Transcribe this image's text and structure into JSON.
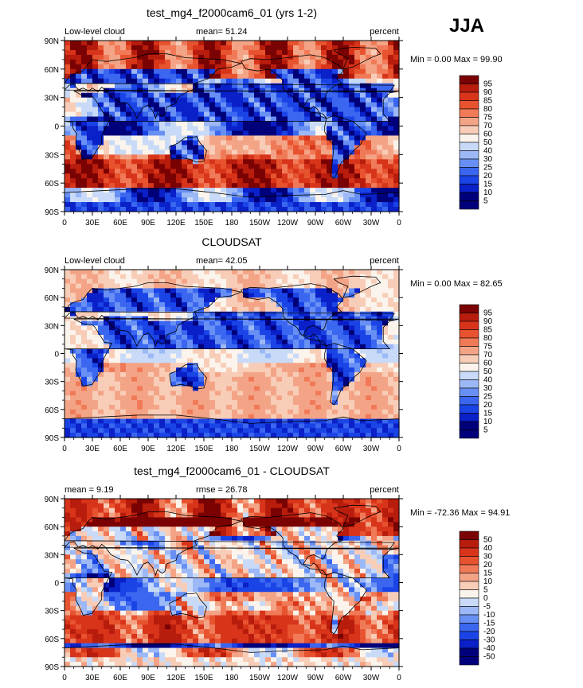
{
  "season": "JJA",
  "lat_ticks": [
    "90N",
    "60N",
    "30N",
    "0",
    "30S",
    "60S",
    "90S"
  ],
  "lon_ticks": [
    "0",
    "30E",
    "60E",
    "90E",
    "120E",
    "150E",
    "180",
    "150W",
    "120W",
    "90W",
    "60W",
    "30W",
    "0"
  ],
  "chart_data": [
    {
      "type": "heatmap",
      "title": "test_mg4_f2000cam6_01 (yrs 1-2)",
      "left_label": "Low-level cloud",
      "center_label": "mean=  51.24",
      "right_label": "percent",
      "stats": "Min =    0.00 Max =   99.90",
      "min": 0.0,
      "max": 99.9,
      "mean": 51.24,
      "colorbar_levels": [
        "95",
        "90",
        "85",
        "80",
        "75",
        "70",
        "60",
        "50",
        "40",
        "30",
        "25",
        "20",
        "15",
        "10",
        "5"
      ],
      "field": "model",
      "xlim": [
        0,
        360
      ],
      "ylim": [
        -90,
        90
      ]
    },
    {
      "type": "heatmap",
      "title": "CLOUDSAT",
      "left_label": "Low-level cloud",
      "center_label": "mean=  42.05",
      "right_label": "percent",
      "stats": "Min =    0.00 Max =   82.65",
      "min": 0.0,
      "max": 82.65,
      "mean": 42.05,
      "colorbar_levels": [
        "95",
        "90",
        "85",
        "80",
        "75",
        "70",
        "60",
        "50",
        "40",
        "30",
        "25",
        "20",
        "15",
        "10",
        "5"
      ],
      "field": "obs",
      "xlim": [
        0,
        360
      ],
      "ylim": [
        -90,
        90
      ]
    },
    {
      "type": "heatmap",
      "title": "test_mg4_f2000cam6_01 - CLOUDSAT",
      "left_label": "mean =    9.19",
      "center_label": "rmse =   26.78",
      "right_label": "percent",
      "stats": "Min = -72.36 Max =   94.91",
      "min": -72.36,
      "max": 94.91,
      "mean": 9.19,
      "rmse": 26.78,
      "colorbar_levels": [
        "50",
        "40",
        "30",
        "20",
        "15",
        "10",
        "5",
        "0",
        "-5",
        "-10",
        "-15",
        "-20",
        "-30",
        "-40",
        "-50"
      ],
      "field": "diff",
      "xlim": [
        0,
        360
      ],
      "ylim": [
        -90,
        90
      ]
    }
  ],
  "colors": {
    "palette": [
      "#00007a",
      "#0a20c8",
      "#1a44e6",
      "#3a66f0",
      "#6890f4",
      "#9cb8f6",
      "#c8daf8",
      "#fbf4ec",
      "#f8cdb8",
      "#f4a486",
      "#f07a58",
      "#e8532f",
      "#d8341a",
      "#b81c0c",
      "#7a0202"
    ],
    "land": "#2b3a1a",
    "outline": "#000000"
  }
}
